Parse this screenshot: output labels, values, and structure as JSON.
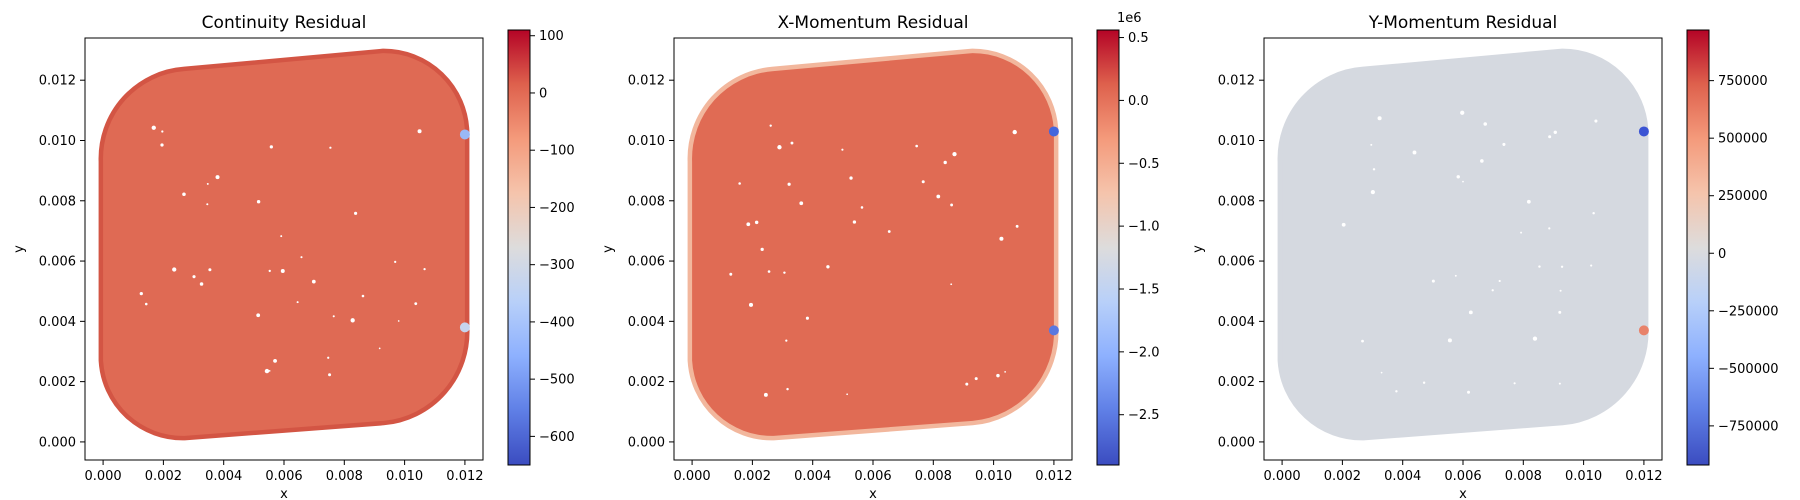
{
  "chart_data": [
    {
      "type": "scatter",
      "title": "Continuity Residual",
      "xlabel": "x",
      "ylabel": "y",
      "xlim": [
        -0.0006,
        0.0126
      ],
      "ylim": [
        -0.0006,
        0.0134
      ],
      "xticks": [
        "0.000",
        "0.002",
        "0.004",
        "0.006",
        "0.008",
        "0.010",
        "0.012"
      ],
      "xtick_values": [
        0,
        0.002,
        0.004,
        0.006,
        0.008,
        0.01,
        0.012
      ],
      "yticks": [
        "0.000",
        "0.002",
        "0.004",
        "0.006",
        "0.008",
        "0.010",
        "0.012"
      ],
      "ytick_values": [
        0,
        0.002,
        0.004,
        0.006,
        0.008,
        0.01,
        0.012
      ],
      "domain_outline": [
        [
          0.0027,
          0.0002
        ],
        [
          0.0093,
          0.0007
        ],
        [
          0.012,
          0.0038
        ],
        [
          0.012,
          0.0103
        ],
        [
          0.0093,
          0.0129
        ],
        [
          0.0027,
          0.0123
        ],
        [
          0,
          0.0093
        ],
        [
          0,
          0.0027
        ]
      ],
      "field_color": "#df6a54",
      "edge_color": "#d35544",
      "highlights": [
        {
          "x": 0.012,
          "y": 0.0102,
          "color": "#9ab8f5"
        },
        {
          "x": 0.012,
          "y": 0.0038,
          "color": "#c6d4ee"
        }
      ],
      "colorbar": {
        "min": -650,
        "max": 110,
        "ticks": [
          "100",
          "0",
          "−100",
          "−200",
          "−300",
          "−400",
          "−500",
          "−600"
        ],
        "tick_values": [
          100,
          0,
          -100,
          -200,
          -300,
          -400,
          -500,
          -600
        ],
        "offset_label": "",
        "colormap": "coolwarm"
      }
    },
    {
      "type": "scatter",
      "title": "X-Momentum Residual",
      "xlabel": "x",
      "ylabel": "y",
      "xlim": [
        -0.0006,
        0.0126
      ],
      "ylim": [
        -0.0006,
        0.0134
      ],
      "xticks": [
        "0.000",
        "0.002",
        "0.004",
        "0.006",
        "0.008",
        "0.010",
        "0.012"
      ],
      "xtick_values": [
        0,
        0.002,
        0.004,
        0.006,
        0.008,
        0.01,
        0.012
      ],
      "yticks": [
        "0.000",
        "0.002",
        "0.004",
        "0.006",
        "0.008",
        "0.010",
        "0.012"
      ],
      "ytick_values": [
        0,
        0.002,
        0.004,
        0.006,
        0.008,
        0.01,
        0.012
      ],
      "domain_outline": [
        [
          0.0027,
          0.0002
        ],
        [
          0.0093,
          0.0007
        ],
        [
          0.012,
          0.0038
        ],
        [
          0.012,
          0.0103
        ],
        [
          0.0093,
          0.0129
        ],
        [
          0.0027,
          0.0123
        ],
        [
          0,
          0.0093
        ],
        [
          0,
          0.0027
        ]
      ],
      "field_color": "#e06b54",
      "edge_color": "#f2b79d",
      "highlights": [
        {
          "x": 0.012,
          "y": 0.0103,
          "color": "#4466dd"
        },
        {
          "x": 0.012,
          "y": 0.0037,
          "color": "#5a78e0"
        }
      ],
      "colorbar": {
        "min": -2.9,
        "max": 0.56,
        "ticks": [
          "0.5",
          "0.0",
          "−0.5",
          "−1.0",
          "−1.5",
          "−2.0",
          "−2.5"
        ],
        "tick_values": [
          0.5,
          0,
          -0.5,
          -1,
          -1.5,
          -2,
          -2.5
        ],
        "offset_label": "1e6",
        "colormap": "coolwarm"
      }
    },
    {
      "type": "scatter",
      "title": "Y-Momentum Residual",
      "xlabel": "x",
      "ylabel": "y",
      "xlim": [
        -0.0006,
        0.0126
      ],
      "ylim": [
        -0.0006,
        0.0134
      ],
      "xticks": [
        "0.000",
        "0.002",
        "0.004",
        "0.006",
        "0.008",
        "0.010",
        "0.012"
      ],
      "xtick_values": [
        0,
        0.002,
        0.004,
        0.006,
        0.008,
        0.01,
        0.012
      ],
      "yticks": [
        "0.000",
        "0.002",
        "0.004",
        "0.006",
        "0.008",
        "0.010",
        "0.012"
      ],
      "ytick_values": [
        0,
        0.002,
        0.004,
        0.006,
        0.008,
        0.01,
        0.012
      ],
      "domain_outline": [
        [
          0.0027,
          0.0002
        ],
        [
          0.0093,
          0.0007
        ],
        [
          0.012,
          0.0038
        ],
        [
          0.012,
          0.0103
        ],
        [
          0.0093,
          0.0129
        ],
        [
          0.0027,
          0.0123
        ],
        [
          0,
          0.0093
        ],
        [
          0,
          0.0027
        ]
      ],
      "field_color": "#d5d9e0",
      "edge_color": "#d5d9e0",
      "highlights": [
        {
          "x": 0.012,
          "y": 0.0103,
          "color": "#3b54d4"
        },
        {
          "x": 0.012,
          "y": 0.0037,
          "color": "#e8826a"
        }
      ],
      "colorbar": {
        "min": -920000,
        "max": 970000,
        "ticks": [
          "750000",
          "500000",
          "250000",
          "0",
          "−250000",
          "−500000",
          "−750000"
        ],
        "tick_values": [
          750000,
          500000,
          250000,
          0,
          -250000,
          -500000,
          -750000
        ],
        "offset_label": "",
        "colormap": "coolwarm"
      }
    }
  ]
}
